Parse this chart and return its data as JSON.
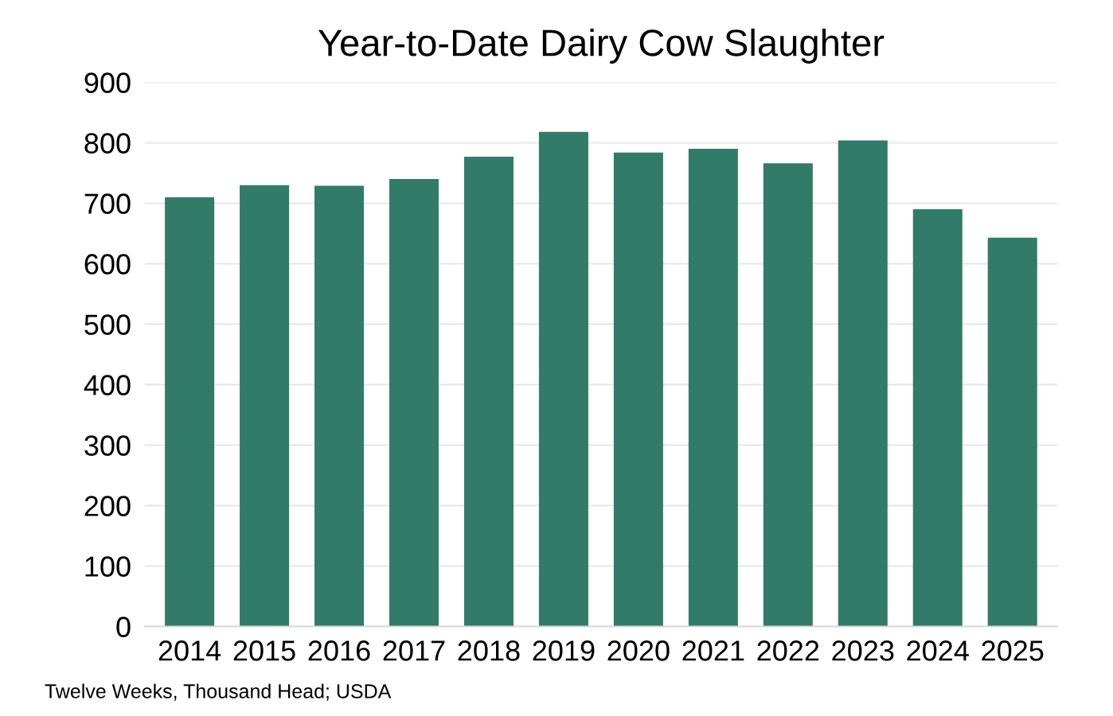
{
  "chart_data": {
    "type": "bar",
    "title": "Year-to-Date Dairy Cow Slaughter",
    "categories": [
      "2014",
      "2015",
      "2016",
      "2017",
      "2018",
      "2019",
      "2020",
      "2021",
      "2022",
      "2023",
      "2024",
      "2025"
    ],
    "values": [
      710,
      730,
      729,
      740,
      777,
      818,
      784,
      790,
      766,
      804,
      690,
      643
    ],
    "color": "#317b68",
    "ylim": [
      0,
      900
    ],
    "yticks": [
      0,
      100,
      200,
      300,
      400,
      500,
      600,
      700,
      800,
      900
    ],
    "grid": "y",
    "annotations": [
      "Twelve Weeks, Thousand Head; USDA"
    ]
  }
}
